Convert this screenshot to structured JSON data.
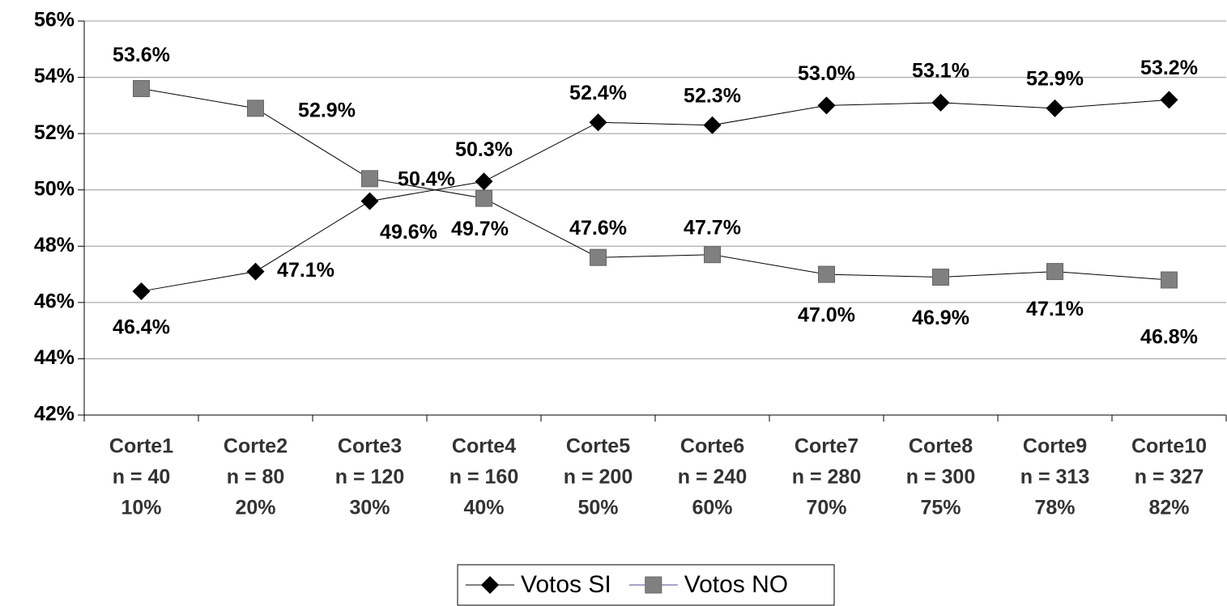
{
  "chart_data": {
    "type": "line",
    "categories": [
      [
        "Corte1",
        "n = 40",
        "10%"
      ],
      [
        "Corte2",
        "n = 80",
        "20%"
      ],
      [
        "Corte3",
        "n = 120",
        "30%"
      ],
      [
        "Corte4",
        "n = 160",
        "40%"
      ],
      [
        "Corte5",
        "n = 200",
        "50%"
      ],
      [
        "Corte6",
        "n = 240",
        "60%"
      ],
      [
        "Corte7",
        "n = 280",
        "70%"
      ],
      [
        "Corte8",
        "n = 300",
        "75%"
      ],
      [
        "Corte9",
        "n = 313",
        "78%"
      ],
      [
        "Corte10",
        "n = 327",
        "82%"
      ]
    ],
    "series": [
      {
        "name": "Votos SI",
        "color": "#000000",
        "marker": "diamond",
        "values": [
          46.4,
          47.1,
          49.6,
          50.3,
          52.4,
          52.3,
          53.0,
          53.1,
          52.9,
          53.2
        ],
        "value_labels": [
          "46.4%",
          "47.1%",
          "49.6%",
          "50.3%",
          "52.4%",
          "52.3%",
          "53.0%",
          "53.1%",
          "52.9%",
          "53.2%"
        ]
      },
      {
        "name": "Votos NO",
        "color": "#808080",
        "marker": "square",
        "values": [
          53.6,
          52.9,
          50.4,
          49.7,
          47.6,
          47.7,
          47.0,
          46.9,
          47.1,
          46.8
        ],
        "value_labels": [
          "53.6%",
          "52.9%",
          "50.4%",
          "49.7%",
          "47.6%",
          "47.7%",
          "47.0%",
          "46.9%",
          "47.1%",
          "46.8%"
        ]
      }
    ],
    "ylim": [
      42,
      56
    ],
    "yticks": [
      {
        "value": 42,
        "label": "42%"
      },
      {
        "value": 44,
        "label": "44%"
      },
      {
        "value": 46,
        "label": "46%"
      },
      {
        "value": 48,
        "label": "48%"
      },
      {
        "value": 50,
        "label": "50%"
      },
      {
        "value": 52,
        "label": "52%"
      },
      {
        "value": 54,
        "label": "54%"
      },
      {
        "value": 56,
        "label": "56%"
      }
    ],
    "grid": true,
    "legend": "bottom"
  }
}
